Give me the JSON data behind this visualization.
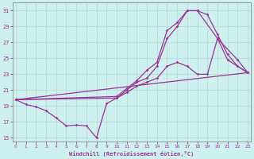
{
  "xlabel": "Windchill (Refroidissement éolien,°C)",
  "bg_color": "#cef0ee",
  "line_color": "#993399",
  "xlim": [
    -0.3,
    23.3
  ],
  "ylim": [
    14.5,
    32
  ],
  "xticks": [
    0,
    1,
    2,
    3,
    4,
    5,
    6,
    7,
    8,
    9,
    10,
    11,
    12,
    13,
    14,
    15,
    16,
    17,
    18,
    19,
    20,
    21,
    22,
    23
  ],
  "yticks": [
    15,
    17,
    19,
    21,
    23,
    25,
    27,
    29,
    31
  ],
  "line_straight": {
    "x": [
      0,
      23
    ],
    "y": [
      19.8,
      23.2
    ]
  },
  "line1_x": [
    0,
    1,
    2,
    3,
    4,
    5,
    6,
    7,
    8,
    9,
    10,
    11,
    12,
    13,
    14,
    15,
    16,
    17,
    18,
    19,
    20,
    21,
    22,
    23
  ],
  "line1_y": [
    19.8,
    19.2,
    18.9,
    18.4,
    17.5,
    16.5,
    16.6,
    16.5,
    15.0,
    19.3,
    20.0,
    20.7,
    21.5,
    22.0,
    22.5,
    24.0,
    24.5,
    24.0,
    23.0,
    23.0,
    27.5,
    24.8,
    24.0,
    23.2
  ],
  "line2_x": [
    0,
    10,
    11,
    12,
    13,
    14,
    15,
    16,
    17,
    18,
    20,
    22,
    23
  ],
  "line2_y": [
    19.8,
    20.2,
    21.2,
    22.2,
    23.5,
    24.5,
    28.5,
    29.5,
    31.0,
    31.0,
    27.5,
    24.8,
    23.2
  ],
  "line3_x": [
    0,
    10,
    11,
    12,
    13,
    14,
    15,
    16,
    17,
    18,
    19,
    20,
    21,
    22,
    23
  ],
  "line3_y": [
    19.8,
    20.0,
    21.0,
    22.0,
    22.5,
    24.0,
    27.5,
    29.0,
    31.0,
    31.0,
    30.5,
    28.0,
    25.5,
    24.0,
    23.2
  ]
}
